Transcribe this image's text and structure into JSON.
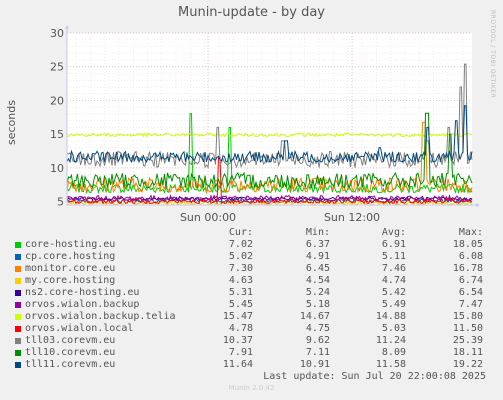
{
  "chart_data": {
    "type": "line",
    "title": "Munin-update - by day",
    "ylabel": "seconds",
    "ylim": [
      4.5,
      30
    ],
    "yticks": [
      5,
      10,
      15,
      20,
      25,
      30
    ],
    "xtick_labels": [
      "Sun 00:00",
      "Sun 12:00"
    ],
    "grid": true,
    "series": [
      {
        "name": "core-hosting.eu",
        "color": "#00cc00",
        "cur": "7.02",
        "min": "6.37",
        "avg": "6.91",
        "max": "18.05"
      },
      {
        "name": "cp.core.hosting",
        "color": "#0066b3",
        "cur": "5.02",
        "min": "4.91",
        "avg": "5.11",
        "max": "6.08"
      },
      {
        "name": "monitor.core.eu",
        "color": "#ff8000",
        "cur": "7.30",
        "min": "6.45",
        "avg": "7.46",
        "max": "16.78"
      },
      {
        "name": "my.core.hosting",
        "color": "#ffcc00",
        "cur": "4.63",
        "min": "4.54",
        "avg": "4.74",
        "max": "6.74"
      },
      {
        "name": "ns2.core-hosting.eu",
        "color": "#330099",
        "cur": "5.31",
        "min": "5.24",
        "avg": "5.42",
        "max": "6.54"
      },
      {
        "name": "orvos.wialon.backup",
        "color": "#990099",
        "cur": "5.45",
        "min": "5.18",
        "avg": "5.49",
        "max": "7.47"
      },
      {
        "name": "orvos.wialon.backup.telia",
        "color": "#ccff00",
        "cur": "15.47",
        "min": "14.67",
        "avg": "14.88",
        "max": "15.80"
      },
      {
        "name": "orvos.wialon.local",
        "color": "#ff0000",
        "cur": "4.78",
        "min": "4.75",
        "avg": "5.03",
        "max": "11.50"
      },
      {
        "name": "tll03.corevm.eu",
        "color": "#808080",
        "cur": "10.37",
        "min": "9.62",
        "avg": "11.24",
        "max": "25.39"
      },
      {
        "name": "tll10.corevm.eu",
        "color": "#008f00",
        "cur": "7.91",
        "min": "7.11",
        "avg": "8.09",
        "max": "18.11"
      },
      {
        "name": "tll11.corevm.eu",
        "color": "#00487d",
        "cur": "11.64",
        "min": "10.91",
        "avg": "11.58",
        "max": "19.22"
      }
    ]
  },
  "legend_headers": {
    "cur": "Cur:",
    "min": "Min:",
    "avg": "Avg:",
    "max": "Max:"
  },
  "last_update": "Last update: Sun Jul 20 22:00:08 2025",
  "watermark": "RRDTOOL / TOBI OETIKER",
  "version": "Munin 2.0.42"
}
